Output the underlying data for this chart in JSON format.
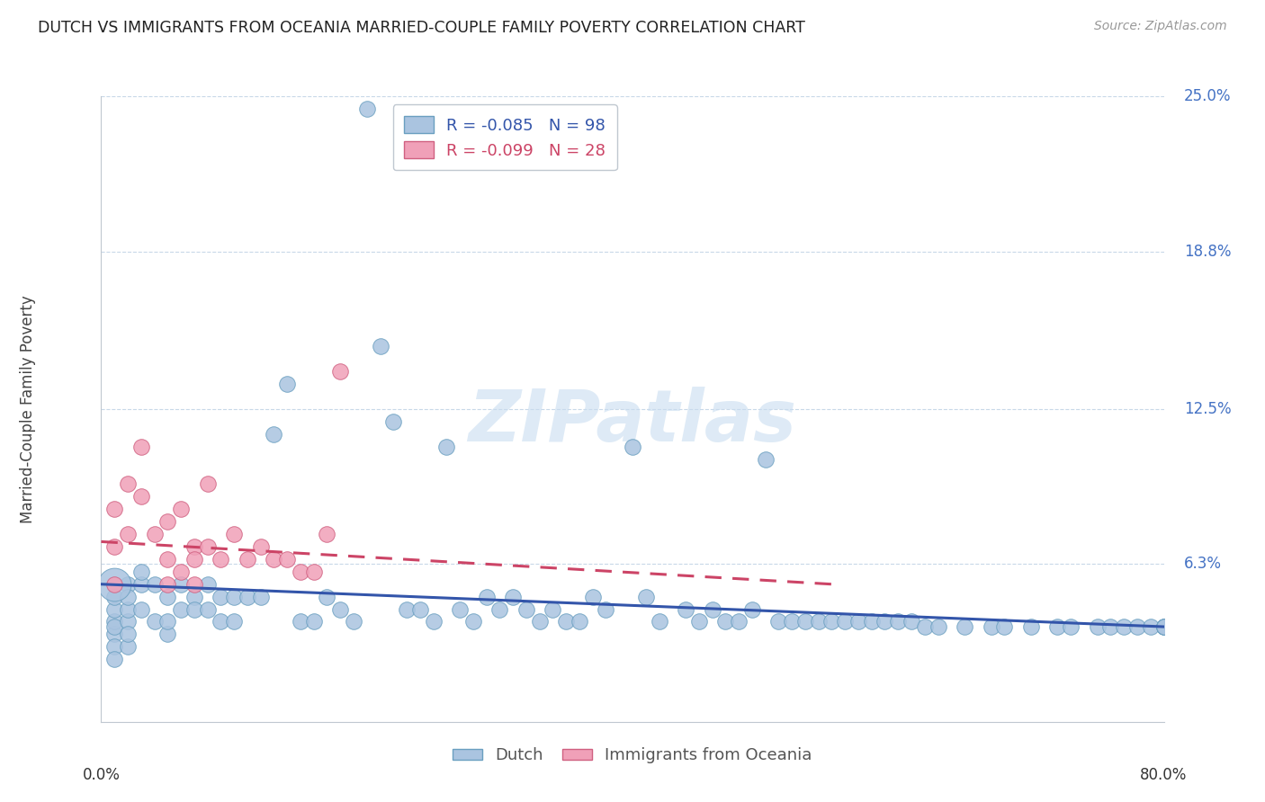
{
  "title": "DUTCH VS IMMIGRANTS FROM OCEANIA MARRIED-COUPLE FAMILY POVERTY CORRELATION CHART",
  "source": "Source: ZipAtlas.com",
  "ylabel": "Married-Couple Family Poverty",
  "ytick_labels": [
    "6.3%",
    "12.5%",
    "18.8%",
    "25.0%"
  ],
  "ytick_values": [
    6.3,
    12.5,
    18.8,
    25.0
  ],
  "xlim": [
    0,
    80
  ],
  "ylim": [
    0,
    25
  ],
  "legend_series_1": "R = -0.085   N = 98",
  "legend_series_2": "R = -0.099   N = 28",
  "bottom_legend": [
    "Dutch",
    "Immigrants from Oceania"
  ],
  "dutch_color": "#aac4e0",
  "oceania_color": "#f0a0b8",
  "dutch_edge_color": "#6a9fc0",
  "oceania_edge_color": "#d06080",
  "dutch_line_color": "#3355aa",
  "oceania_line_color": "#cc4466",
  "watermark_color": "#c8ddf0",
  "dutch_trendline_x": [
    0,
    80
  ],
  "dutch_trendline_y": [
    5.5,
    3.8
  ],
  "oceania_trendline_x": [
    0,
    55
  ],
  "oceania_trendline_y": [
    7.2,
    5.5
  ],
  "dutch_x": [
    1,
    1,
    1,
    1,
    1,
    1,
    1,
    2,
    2,
    2,
    2,
    2,
    2,
    3,
    3,
    3,
    4,
    4,
    5,
    5,
    5,
    6,
    6,
    7,
    7,
    8,
    8,
    9,
    9,
    10,
    10,
    11,
    12,
    13,
    14,
    15,
    16,
    17,
    18,
    19,
    20,
    21,
    22,
    23,
    24,
    25,
    26,
    27,
    28,
    29,
    30,
    31,
    32,
    33,
    34,
    35,
    36,
    37,
    38,
    40,
    41,
    42,
    44,
    45,
    46,
    47,
    48,
    49,
    50,
    51,
    52,
    53,
    54,
    55,
    56,
    57,
    58,
    59,
    60,
    61,
    62,
    63,
    65,
    67,
    68,
    70,
    72,
    73,
    75,
    76,
    77,
    78,
    79,
    80,
    80,
    80,
    80,
    80
  ],
  "dutch_y": [
    3.5,
    4.0,
    3.0,
    4.5,
    3.8,
    5.0,
    2.5,
    4.0,
    5.5,
    3.0,
    4.5,
    3.5,
    5.0,
    5.5,
    4.5,
    6.0,
    4.0,
    5.5,
    3.5,
    4.0,
    5.0,
    5.5,
    4.5,
    5.0,
    4.5,
    4.5,
    5.5,
    4.0,
    5.0,
    5.0,
    4.0,
    5.0,
    5.0,
    11.5,
    13.5,
    4.0,
    4.0,
    5.0,
    4.5,
    4.0,
    24.5,
    15.0,
    12.0,
    4.5,
    4.5,
    4.0,
    11.0,
    4.5,
    4.0,
    5.0,
    4.5,
    5.0,
    4.5,
    4.0,
    4.5,
    4.0,
    4.0,
    5.0,
    4.5,
    11.0,
    5.0,
    4.0,
    4.5,
    4.0,
    4.5,
    4.0,
    4.0,
    4.5,
    10.5,
    4.0,
    4.0,
    4.0,
    4.0,
    4.0,
    4.0,
    4.0,
    4.0,
    4.0,
    4.0,
    4.0,
    3.8,
    3.8,
    3.8,
    3.8,
    3.8,
    3.8,
    3.8,
    3.8,
    3.8,
    3.8,
    3.8,
    3.8,
    3.8,
    3.8,
    3.8,
    3.8,
    3.8,
    3.8
  ],
  "dutch_large_x": [
    1
  ],
  "dutch_large_y": [
    5.5
  ],
  "oceania_x": [
    1,
    1,
    1,
    2,
    2,
    3,
    3,
    4,
    5,
    5,
    6,
    6,
    7,
    7,
    8,
    8,
    9,
    10,
    11,
    12,
    13,
    14,
    15,
    16,
    17,
    18,
    5,
    7
  ],
  "oceania_y": [
    8.5,
    7.0,
    5.5,
    9.5,
    7.5,
    11.0,
    9.0,
    7.5,
    8.0,
    6.5,
    8.5,
    6.0,
    7.0,
    5.5,
    9.5,
    7.0,
    6.5,
    7.5,
    6.5,
    7.0,
    6.5,
    6.5,
    6.0,
    6.0,
    7.5,
    14.0,
    5.5,
    6.5
  ]
}
